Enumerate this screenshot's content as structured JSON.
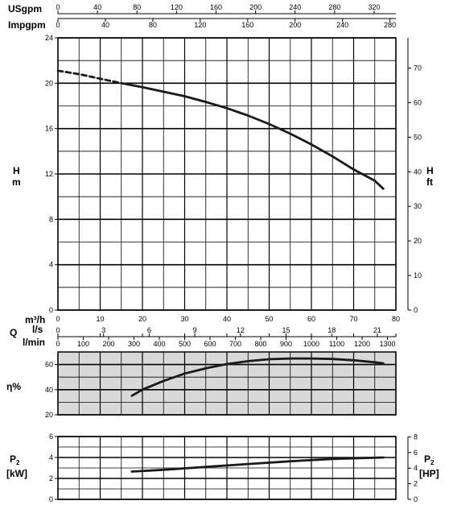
{
  "chart_data": [
    {
      "id": "head",
      "type": "line",
      "title": "",
      "top_axes": [
        {
          "label": "USgpm",
          "ticks": [
            "0",
            "40",
            "80",
            "120",
            "160",
            "200",
            "240",
            "280",
            "320"
          ],
          "range": [
            0,
            342
          ]
        },
        {
          "label": "Impgpm",
          "ticks": [
            "0",
            "40",
            "80",
            "120",
            "160",
            "200",
            "240",
            "280"
          ],
          "range": [
            0,
            285
          ]
        }
      ],
      "left_axis": {
        "label": "H",
        "unit": "m",
        "range": [
          0,
          24
        ],
        "ticks": [
          "0",
          "4",
          "8",
          "12",
          "16",
          "20",
          "24"
        ]
      },
      "right_axis": {
        "label": "H",
        "unit": "ft",
        "range": [
          0,
          78.74
        ],
        "ticks": [
          "0",
          "10",
          "20",
          "30",
          "40",
          "50",
          "60",
          "70"
        ]
      },
      "x_range": [
        0,
        80
      ],
      "grid": true,
      "series": [
        {
          "style": "dashed",
          "x": [
            0,
            5,
            10,
            15
          ],
          "y": [
            21.1,
            20.8,
            20.4,
            20.0
          ]
        },
        {
          "style": "solid",
          "x": [
            15,
            20,
            25,
            30,
            35,
            40,
            45,
            50,
            55,
            60,
            65,
            70,
            75,
            77
          ],
          "y": [
            20.0,
            19.65,
            19.25,
            18.85,
            18.35,
            17.8,
            17.15,
            16.4,
            15.55,
            14.6,
            13.55,
            12.4,
            11.4,
            10.7
          ]
        }
      ]
    },
    {
      "id": "flow_axes",
      "type": "table",
      "label": "Q",
      "axes": [
        {
          "unit": "m³/h",
          "ticks": [
            "0",
            "10",
            "20",
            "30",
            "40",
            "50",
            "60",
            "70",
            "80"
          ],
          "range": [
            0,
            80
          ]
        },
        {
          "unit": "l/s",
          "ticks": [
            "0",
            "3",
            "6",
            "9",
            "12",
            "15",
            "18",
            "21"
          ],
          "range": [
            0,
            22.22
          ]
        },
        {
          "unit": "l/min",
          "ticks": [
            "0",
            "100",
            "200",
            "300",
            "400",
            "500",
            "600",
            "700",
            "800",
            "900",
            "1000",
            "1100",
            "1200",
            "1300"
          ],
          "range": [
            0,
            1333.3
          ]
        }
      ]
    },
    {
      "id": "efficiency",
      "type": "line",
      "left_axis": {
        "label": "η%",
        "range": [
          20,
          70
        ],
        "ticks": [
          "20",
          "40",
          "60"
        ]
      },
      "x_range": [
        0,
        80
      ],
      "grid": true,
      "background": "#d9d9d9",
      "series": [
        {
          "style": "solid",
          "x": [
            17.5,
            20,
            25,
            30,
            35,
            40,
            45,
            50,
            55,
            60,
            65,
            70,
            75,
            77
          ],
          "y": [
            35.2,
            40.0,
            47.0,
            52.8,
            57.0,
            60.4,
            62.7,
            64.2,
            64.8,
            64.8,
            64.4,
            63.4,
            61.8,
            60.9
          ]
        }
      ]
    },
    {
      "id": "power",
      "type": "line",
      "left_axis": {
        "label": "P",
        "subscript": "2",
        "unit": "[kW]",
        "range": [
          0,
          6
        ],
        "ticks": [
          "0",
          "2",
          "4",
          "6"
        ]
      },
      "right_axis": {
        "label": "P",
        "subscript": "2",
        "unit": "[HP]",
        "range": [
          0,
          8.05
        ],
        "ticks": [
          "0",
          "2",
          "4",
          "6",
          "8"
        ]
      },
      "x_range": [
        0,
        80
      ],
      "grid": true,
      "series": [
        {
          "style": "solid",
          "x": [
            17.5,
            25,
            35,
            45,
            55,
            65,
            77
          ],
          "y": [
            2.65,
            2.82,
            3.1,
            3.38,
            3.64,
            3.86,
            4.0
          ]
        }
      ]
    }
  ]
}
